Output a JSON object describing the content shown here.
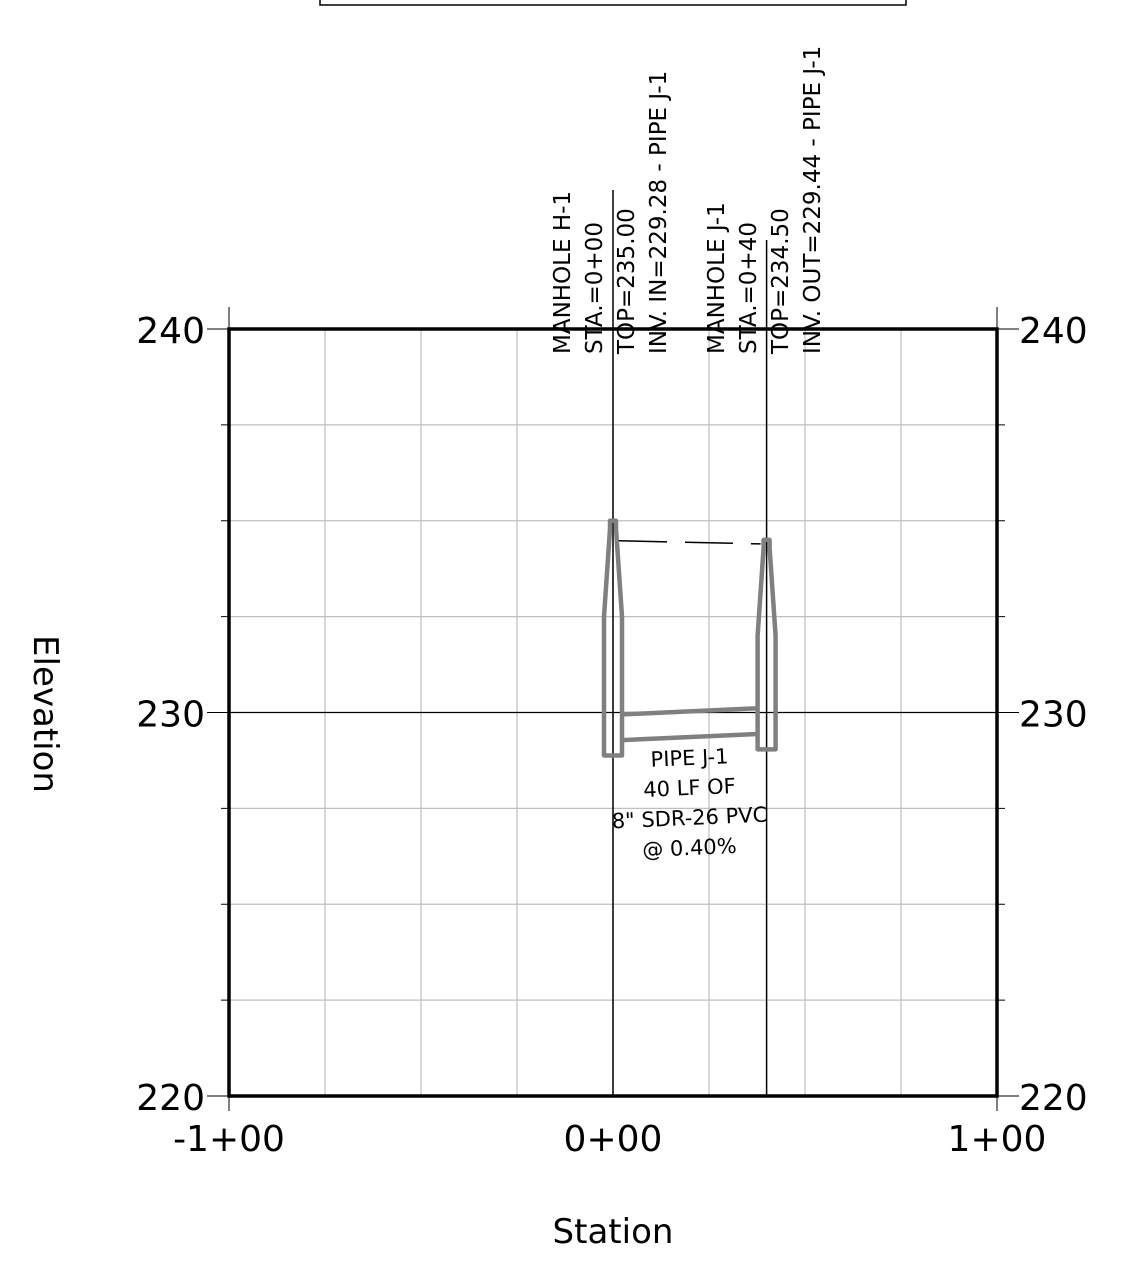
{
  "axes": {
    "x_title": "Station",
    "y_title": "Elevation",
    "x_ticks": [
      {
        "value": -100,
        "label": "-1+00"
      },
      {
        "value": 0,
        "label": "0+00"
      },
      {
        "value": 100,
        "label": "1+00"
      }
    ],
    "y_ticks": [
      {
        "value": 220,
        "label": "220"
      },
      {
        "value": 230,
        "label": "230"
      },
      {
        "value": 240,
        "label": "240"
      }
    ],
    "x_range": [
      -100,
      100
    ],
    "y_range": [
      220,
      240
    ],
    "grid": true
  },
  "manholes": [
    {
      "name": "MANHOLE H-1",
      "station": 0,
      "top": 235.0,
      "invert": 229.28,
      "lines": [
        "MANHOLE H-1",
        "STA.=0+00",
        "TOP=235.00",
        "INV. IN=229.28 - PIPE J-1"
      ]
    },
    {
      "name": "MANHOLE J-1",
      "station": 40,
      "top": 234.5,
      "invert": 229.44,
      "lines": [
        "MANHOLE J-1",
        "STA.=0+40",
        "TOP=234.50",
        "INV. OUT=229.44 - PIPE J-1"
      ]
    }
  ],
  "pipe": {
    "from_station": 0,
    "to_station": 40,
    "invert_start": 229.28,
    "invert_end": 229.44,
    "label_lines": [
      "PIPE J-1",
      "40 LF OF",
      "8\" SDR-26 PVC",
      "@ 0.40%"
    ]
  },
  "colors": {
    "structure": "#808080",
    "grid": "#bfbfbf",
    "frame": "#000000"
  }
}
